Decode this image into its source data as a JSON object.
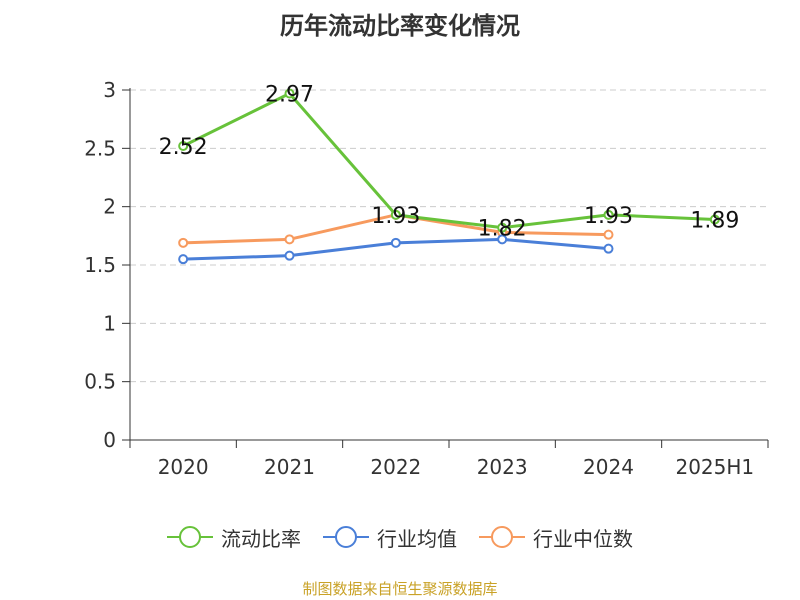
{
  "chart_data": {
    "type": "line",
    "title": "历年流动比率变化情况",
    "categories": [
      "2020",
      "2021",
      "2022",
      "2023",
      "2024",
      "2025H1"
    ],
    "ylim": [
      0,
      3
    ],
    "yticks": [
      "0",
      "0.5",
      "1",
      "1.5",
      "2",
      "2.5",
      "3"
    ],
    "grid": true,
    "legend_position": "bottom",
    "series": [
      {
        "name": "流动比率",
        "color": "#67c23a",
        "values": [
          2.52,
          2.97,
          1.93,
          1.82,
          1.93,
          1.89
        ],
        "labels": [
          "2.52",
          "2.97",
          "1.93",
          "1.82",
          "1.93",
          "1.89"
        ]
      },
      {
        "name": "行业均值",
        "color": "#4a7fd8",
        "values": [
          1.55,
          1.58,
          1.69,
          1.72,
          1.64,
          null
        ]
      },
      {
        "name": "行业中位数",
        "color": "#f79a5e",
        "values": [
          1.69,
          1.72,
          1.93,
          1.78,
          1.76,
          null
        ]
      }
    ]
  },
  "source_note": "制图数据来自恒生聚源数据库"
}
